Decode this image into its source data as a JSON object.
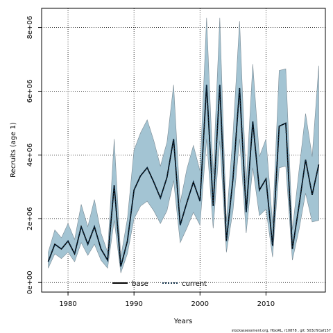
{
  "chart_data": {
    "type": "line",
    "xlabel": "Years",
    "ylabel": "Recruits (age 1)",
    "xlim": [
      1976,
      2019
    ],
    "ylim": [
      -300000,
      8600000
    ],
    "x_ticks": [
      1980,
      1990,
      2000,
      2010
    ],
    "x_tick_labels": [
      "1980",
      "1990",
      "2000",
      "2010"
    ],
    "y_ticks": [
      0,
      2000000,
      4000000,
      6000000,
      8000000
    ],
    "y_tick_labels": [
      "0e+00",
      "2e+06",
      "4e+06",
      "6e+06",
      "8e+06"
    ],
    "grid": true,
    "legend_position": "bottom",
    "x": [
      1977,
      1978,
      1979,
      1980,
      1981,
      1982,
      1983,
      1984,
      1985,
      1986,
      1987,
      1988,
      1989,
      1990,
      1991,
      1992,
      1993,
      1994,
      1995,
      1996,
      1997,
      1998,
      1999,
      2000,
      2001,
      2002,
      2003,
      2004,
      2005,
      2006,
      2007,
      2008,
      2009,
      2010,
      2011,
      2012,
      2013,
      2014,
      2015,
      2016,
      2017,
      2018
    ],
    "series": [
      {
        "name": "base",
        "style": "solid",
        "color": "#000000",
        "values": [
          650000,
          1200000,
          1050000,
          1300000,
          900000,
          1750000,
          1200000,
          1750000,
          1050000,
          700000,
          3050000,
          500000,
          1300000,
          2900000,
          3350000,
          3600000,
          3150000,
          2650000,
          3300000,
          4500000,
          1800000,
          2500000,
          3150000,
          2550000,
          6200000,
          2400000,
          6200000,
          1300000,
          3250000,
          6100000,
          2200000,
          5050000,
          2900000,
          3250000,
          1150000,
          4900000,
          5000000,
          1050000,
          2400000,
          3850000,
          2750000,
          3700000
        ]
      },
      {
        "name": "current",
        "style": "dotted",
        "color": "#000000",
        "values": [
          650000,
          1200000,
          1050000,
          1300000,
          900000,
          1750000,
          1200000,
          1750000,
          1050000,
          700000,
          3050000,
          500000,
          1300000,
          2900000,
          3350000,
          3600000,
          3150000,
          2650000,
          3300000,
          4500000,
          1800000,
          2500000,
          3150000,
          2550000,
          6200000,
          2400000,
          6200000,
          1300000,
          3250000,
          6100000,
          2200000,
          5050000,
          2900000,
          3250000,
          1150000,
          4900000,
          5000000,
          1050000,
          2400000,
          3850000,
          2750000,
          3700000
        ]
      }
    ],
    "interval": {
      "color": "#a3c4d3",
      "upper": [
        950000,
        1650000,
        1400000,
        1850000,
        1350000,
        2450000,
        1750000,
        2600000,
        1550000,
        950000,
        4500000,
        800000,
        2000000,
        4150000,
        4700000,
        5100000,
        4450000,
        3650000,
        4400000,
        6200000,
        2500000,
        3550000,
        4300000,
        3500000,
        8300000,
        3400000,
        8300000,
        1900000,
        4650000,
        8200000,
        3100000,
        6850000,
        3950000,
        4500000,
        1850000,
        6650000,
        6700000,
        1650000,
        3500000,
        5300000,
        3950000,
        6800000
      ],
      "lower": [
        450000,
        900000,
        750000,
        950000,
        650000,
        1250000,
        850000,
        1200000,
        700000,
        450000,
        1950000,
        300000,
        900000,
        2000000,
        2400000,
        2550000,
        2250000,
        1850000,
        2250000,
        3200000,
        1250000,
        1700000,
        2200000,
        1800000,
        4500000,
        1700000,
        4450000,
        950000,
        2250000,
        4500000,
        1550000,
        3600000,
        2100000,
        2300000,
        800000,
        3600000,
        3650000,
        700000,
        1650000,
        2800000,
        1900000,
        1950000
      ]
    }
  },
  "legend": [
    {
      "label": "base",
      "style": "solid"
    },
    {
      "label": "current",
      "style": "dotted"
    }
  ],
  "footer": "stockassessment.org, HGoRL, r10878 , git: 503cf91af157"
}
